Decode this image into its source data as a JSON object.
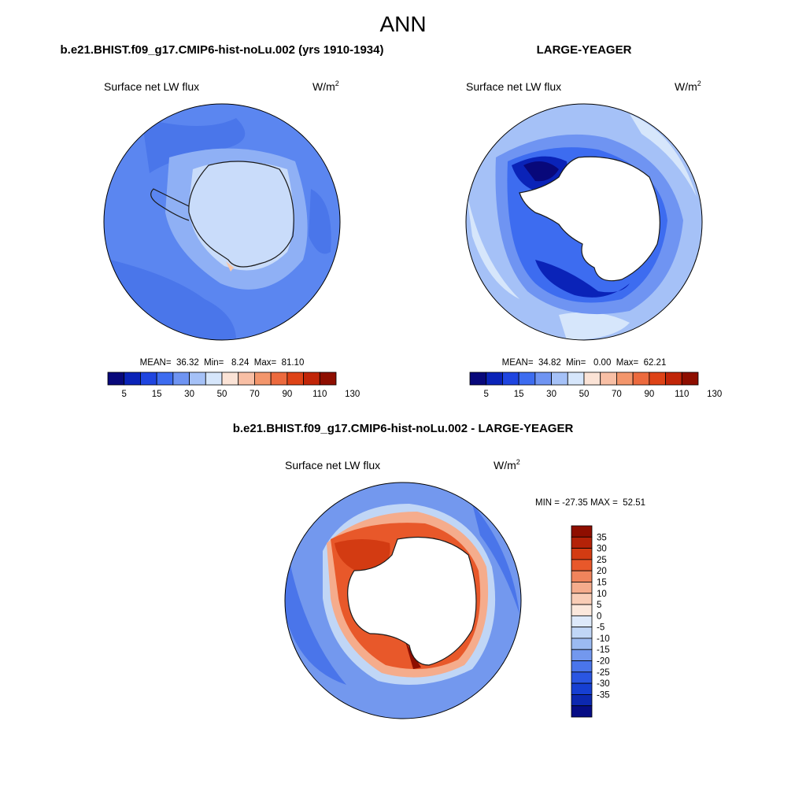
{
  "page_title": "ANN",
  "panels": [
    {
      "title": "b.e21.BHIST.f09_g17.CMIP6-hist-noLu.002 (yrs 1910-1934)",
      "variable": "Surface net LW flux",
      "units_base": "W/m",
      "units_exp": "2",
      "stats": "MEAN=  36.32  Min=   8.24  Max=  81.10",
      "colorbar": {
        "orientation": "horizontal",
        "tick_labels": [
          "5",
          "15",
          "30",
          "50",
          "70",
          "90",
          "110",
          "130"
        ]
      }
    },
    {
      "title": "LARGE-YEAGER",
      "variable": "Surface net LW flux",
      "units_base": "W/m",
      "units_exp": "2",
      "stats": "MEAN=  34.82  Min=   0.00  Max=  62.21",
      "colorbar": {
        "orientation": "horizontal",
        "tick_labels": [
          "5",
          "15",
          "30",
          "50",
          "70",
          "90",
          "110",
          "130"
        ]
      }
    },
    {
      "title": "b.e21.BHIST.f09_g17.CMIP6-hist-noLu.002 - LARGE-YEAGER",
      "variable": "Surface net LW flux",
      "units_base": "W/m",
      "units_exp": "2",
      "stats": "MIN = -27.35 MAX =  52.51",
      "colorbar": {
        "orientation": "vertical",
        "tick_labels": [
          "35",
          "30",
          "25",
          "20",
          "15",
          "10",
          "5",
          "0",
          "-5",
          "-10",
          "-15",
          "-20",
          "-25",
          "-30",
          "-35"
        ]
      }
    }
  ],
  "colors": {
    "abs_scale": [
      "#08087a",
      "#0a23b8",
      "#1f45e0",
      "#3d6cf0",
      "#6f94f2",
      "#a5c1f7",
      "#d6e6fb",
      "#fbe3d6",
      "#f8bfa5",
      "#f3966c",
      "#ec6a3e",
      "#de4317",
      "#c12508",
      "#8e0e00"
    ],
    "diff_scale": [
      "#8e0e00",
      "#b42208",
      "#d33b12",
      "#e8582a",
      "#f0845c",
      "#f5ac8c",
      "#f9cdb6",
      "#fbe8dc",
      "#dde9fa",
      "#c0d6f6",
      "#9bbaf2",
      "#7398ee",
      "#4a75ea",
      "#2a56e2",
      "#163fd2",
      "#0c28b0",
      "#060d85"
    ],
    "land": "#ffffff",
    "coast": "#1a1a1a"
  },
  "chart_data": [
    {
      "type": "heatmap",
      "title": "b.e21.BHIST.f09_g17.CMIP6-hist-noLu.002 (yrs 1910-1934)",
      "subtitle": "Surface net LW flux",
      "units": "W/m^2",
      "projection": "south-polar stereographic",
      "levels": [
        5,
        10,
        15,
        20,
        30,
        40,
        50,
        60,
        70,
        80,
        90,
        100,
        110,
        120,
        130
      ],
      "mean": 36.32,
      "min": 8.24,
      "max": 81.1
    },
    {
      "type": "heatmap",
      "title": "LARGE-YEAGER",
      "subtitle": "Surface net LW flux",
      "units": "W/m^2",
      "projection": "south-polar stereographic",
      "levels": [
        5,
        10,
        15,
        20,
        30,
        40,
        50,
        60,
        70,
        80,
        90,
        100,
        110,
        120,
        130
      ],
      "mean": 34.82,
      "min": 0.0,
      "max": 62.21
    },
    {
      "type": "heatmap",
      "title": "b.e21.BHIST.f09_g17.CMIP6-hist-noLu.002 - LARGE-YEAGER",
      "subtitle": "Surface net LW flux",
      "units": "W/m^2",
      "projection": "south-polar stereographic",
      "levels": [
        -35,
        -30,
        -25,
        -20,
        -15,
        -10,
        -5,
        0,
        5,
        10,
        15,
        20,
        25,
        30,
        35
      ],
      "min": -27.35,
      "max": 52.51
    }
  ]
}
